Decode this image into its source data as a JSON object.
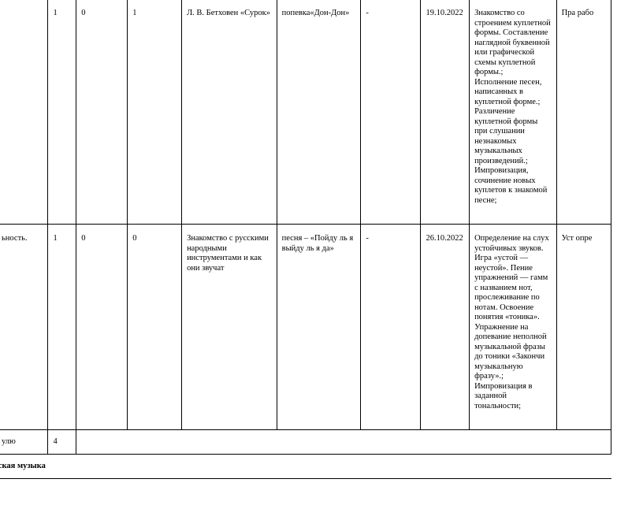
{
  "rows": [
    {
      "topic": "",
      "hours": "1",
      "control": "0",
      "practical": "1",
      "listening": "Л. В. Бетховен «Сурок»",
      "singing": "попевка«Дон-Дон»",
      "music_making": "-",
      "date": "19.10.2022",
      "activities": "Знакомство со строением куплетной формы. Составление наглядной буквенной или графической схемы куплетной формы.;\nИсполнение песен, написанных в куплетной форме.;\nРазличение куплетной формы при слушании незнакомых музыкальных произведений.;\nИмпровизация, сочинение новых куплетов к знакомой песне;",
      "control_form": "Пра рабо"
    },
    {
      "topic": "ьность.",
      "hours": "1",
      "control": "0",
      "practical": "0",
      "listening": "Знакомство с русскими народными инструментами и как они звучат",
      "singing": "песня – «Пойду ль я выйду ль я да»",
      "music_making": "-",
      "date": "26.10.2022",
      "activities": "Определение на слух устойчивых звуков. Игра «устой — неустой». Пение упражнений — гамм с названием нот, прослеживание по нотам. Освоение понятия «тоника». Упражнение на допевание неполной музыкальной фразы до тоники «Закончи музыкальную фразу».;\nИмпровизация в заданной тональности;",
      "control_form": "Уст опре"
    }
  ],
  "total": {
    "label": "улю",
    "hours": "4"
  },
  "section": {
    "title": "ассическая музыка"
  }
}
